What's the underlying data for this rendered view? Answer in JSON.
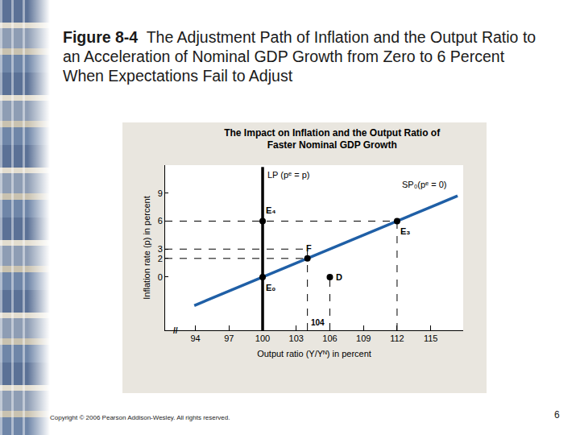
{
  "slide": {
    "heading_label": "Figure 8-4",
    "heading": "The Adjustment Path of Inflation and the Output Ratio to an Acceleration of Nominal GDP Growth from Zero to 6 Percent When Expectations Fail to Adjust",
    "copyright": "Copyright © 2006 Pearson Addison-Wesley. All rights reserved.",
    "page": "6"
  },
  "chart_data": {
    "type": "line",
    "title": [
      "The Impact on Inflation and the Output Ratio of",
      "Faster Nominal GDP Growth"
    ],
    "x_label": "Output ratio (Y/Yᴺ) in percent",
    "y_label": "Inflation rate (p) in percent",
    "xlim": [
      91.3,
      117.9
    ],
    "xticks": [
      94,
      97,
      100,
      103,
      106,
      109,
      112,
      115
    ],
    "ylim": [
      -5.7,
      12
    ],
    "yticks": [
      0,
      2,
      3,
      6,
      9
    ],
    "grid": false,
    "series": [
      {
        "name": "LP (pᵉ = p)",
        "color": "#000000",
        "line_style": "solid",
        "x": [
          100,
          100
        ],
        "values": [
          -5.7,
          11.8
        ]
      },
      {
        "name": "SP₀(pᵉ = 0)",
        "color": "#1f5fa6",
        "line_style": "solid",
        "x": [
          93.9,
          117.4
        ],
        "values": [
          -3.05,
          8.7
        ]
      }
    ],
    "guides": [
      {
        "color": "#000000",
        "line_style": "dashed",
        "x": [
          91.3,
          112
        ],
        "values": [
          6,
          6
        ]
      },
      {
        "color": "#000000",
        "line_style": "dashed",
        "x": [
          91.3,
          104
        ],
        "values": [
          3,
          3
        ]
      },
      {
        "color": "#000000",
        "line_style": "dashed",
        "x": [
          91.3,
          104
        ],
        "values": [
          2,
          2
        ]
      },
      {
        "color": "#000000",
        "line_style": "dashed",
        "x": [
          104,
          104
        ],
        "values": [
          -5.7,
          3
        ]
      },
      {
        "color": "#000000",
        "line_style": "dashed",
        "x": [
          106,
          106
        ],
        "values": [
          -5.7,
          0
        ]
      },
      {
        "color": "#000000",
        "line_style": "dashed",
        "x": [
          112,
          112
        ],
        "values": [
          -5.7,
          6
        ]
      }
    ],
    "points": {
      "color": "#000000",
      "marker": "circle",
      "items": [
        {
          "label": "E₄",
          "x": 100,
          "y": 6
        },
        {
          "label": "E₀",
          "x": 100,
          "y": 0
        },
        {
          "label": "E₃",
          "x": 112,
          "y": 6
        },
        {
          "label": "F",
          "x": 104,
          "y": 2
        },
        {
          "label": "D",
          "x": 106,
          "y": 0
        }
      ]
    },
    "annotations": [
      {
        "text": "104",
        "x": 104.9,
        "y": -4.9
      },
      {
        "text": "//",
        "x": 92.2,
        "y": -5.7
      }
    ]
  }
}
